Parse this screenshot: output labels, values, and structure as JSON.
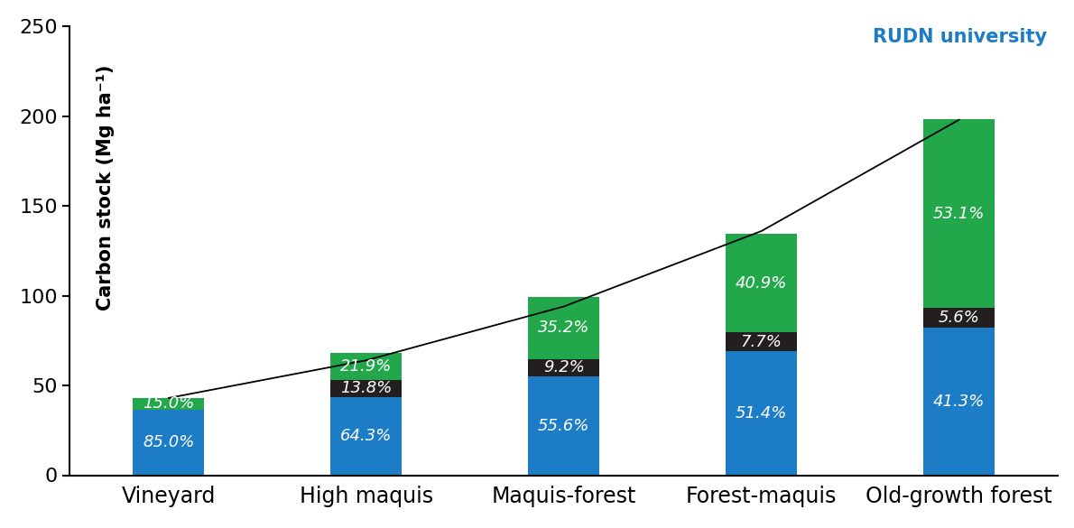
{
  "chart_data": {
    "type": "bar",
    "stacked": true,
    "y_label": "Carbon stock (Mg ha⁻¹)",
    "annotations": [
      "RUDN university"
    ],
    "categories": [
      "Vineyard",
      "High maquis",
      "Maquis-forest",
      "Forest-maquis",
      "Old-growth forest"
    ],
    "series": [
      {
        "type": "bar",
        "color": "#1c7cc6",
        "values": [
          36.5,
          43.7,
          55.3,
          69.1,
          82.0
        ],
        "share_labels": [
          "85.0%",
          "64.3%",
          "55.6%",
          "51.4%",
          "41.3%"
        ]
      },
      {
        "type": "bar",
        "color": "#231f20",
        "values": [
          0,
          9.4,
          9.2,
          10.4,
          11.1
        ],
        "share_labels": [
          null,
          "13.8%",
          "9.2%",
          "7.7%",
          "5.6%"
        ]
      },
      {
        "type": "bar",
        "color": "#22a84b",
        "values": [
          6.5,
          14.9,
          35.0,
          55.0,
          105.4
        ],
        "share_labels": [
          "15.0%",
          "21.9%",
          "35.2%",
          "40.9%",
          "53.1%"
        ]
      },
      {
        "type": "line",
        "color": "#000000",
        "values": [
          43,
          64,
          94,
          136,
          198
        ]
      }
    ],
    "ylim": [
      0,
      250
    ],
    "yticks": [
      0,
      50,
      100,
      150,
      200,
      250
    ]
  }
}
